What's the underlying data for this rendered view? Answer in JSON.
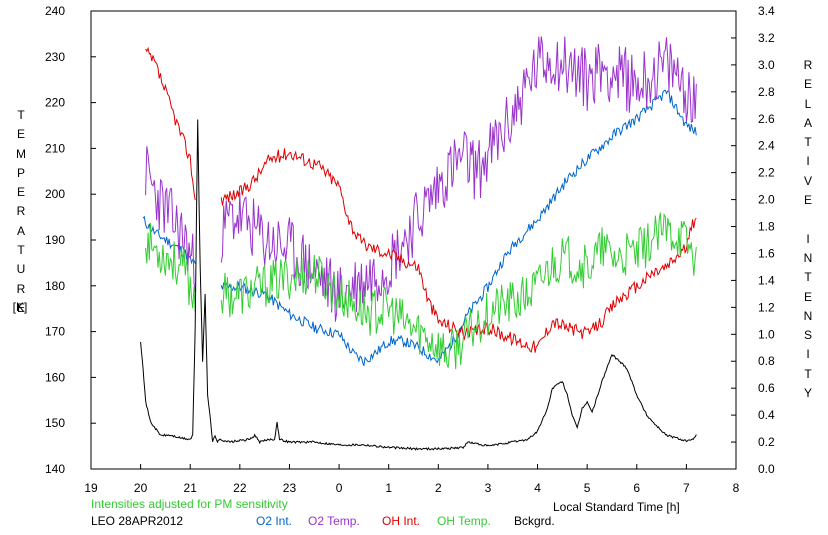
{
  "chart_data": {
    "type": "line",
    "title": "",
    "xlabel": "Local Standard Time [h]",
    "ylabel_left": "TEMPERATURE",
    "ylabel_left_unit": "[K]",
    "ylabel_right": "RELATIVE INTENSITY",
    "x_ticks": [
      "19",
      "20",
      "21",
      "22",
      "23",
      "0",
      "1",
      "2",
      "3",
      "4",
      "5",
      "6",
      "7",
      "8"
    ],
    "xlim": [
      19,
      32
    ],
    "ylim_left": [
      140,
      240
    ],
    "ylim_right": [
      0.0,
      3.4
    ],
    "y_ticks_left": [
      "140",
      "150",
      "160",
      "170",
      "180",
      "190",
      "200",
      "210",
      "220",
      "230",
      "240"
    ],
    "y_ticks_right": [
      "0.0",
      "0.2",
      "0.4",
      "0.6",
      "0.8",
      "1.0",
      "1.2",
      "1.4",
      "1.6",
      "1.8",
      "2.0",
      "2.2",
      "2.4",
      "2.6",
      "2.8",
      "3.0",
      "3.2",
      "3.4"
    ],
    "grid": false,
    "note": "Intensities adjusted for PM sensitivity",
    "station": "LEO 28APR2012",
    "series": [
      {
        "name": "O2 Int.",
        "axis": "right",
        "color": "#0066cc",
        "x": [
          20.05,
          20.3,
          20.6,
          20.9,
          21.0,
          21.6,
          22.0,
          22.5,
          23.0,
          23.5,
          24.0,
          24.3,
          24.5,
          24.8,
          25.0,
          25.3,
          25.6,
          25.8,
          26.0,
          26.3,
          26.6,
          27.0,
          27.3,
          27.6,
          28.0,
          28.3,
          28.6,
          29.0,
          29.3,
          29.6,
          30.0,
          30.3,
          30.6,
          31.0,
          31.2
        ],
        "values": [
          1.85,
          1.75,
          1.68,
          1.6,
          1.55,
          1.35,
          1.35,
          1.3,
          1.15,
          1.05,
          1.0,
          0.85,
          0.8,
          0.88,
          0.95,
          0.95,
          0.9,
          0.85,
          0.8,
          0.95,
          1.15,
          1.35,
          1.55,
          1.7,
          1.85,
          2.0,
          2.15,
          2.3,
          2.4,
          2.5,
          2.6,
          2.7,
          2.8,
          2.55,
          2.5
        ]
      },
      {
        "name": "O2 Temp.",
        "axis": "left",
        "color": "#9933cc",
        "x": [
          20.1,
          20.3,
          20.6,
          20.9,
          21.05,
          21.6,
          21.8,
          22.0,
          22.5,
          23.0,
          23.3,
          23.6,
          24.0,
          24.3,
          24.6,
          25.0,
          25.3,
          25.6,
          25.9,
          26.2,
          26.5,
          26.8,
          27.1,
          27.4,
          27.7,
          28.0,
          28.3,
          28.6,
          29.0,
          29.3,
          29.6,
          30.0,
          30.3,
          30.6,
          30.9,
          31.2
        ],
        "values": [
          205,
          200,
          195,
          190,
          185,
          190,
          195,
          195,
          190,
          188,
          185,
          182,
          178,
          180,
          182,
          185,
          190,
          195,
          200,
          205,
          208,
          205,
          210,
          215,
          222,
          228,
          230,
          228,
          225,
          228,
          226,
          224,
          226,
          228,
          225,
          218
        ]
      },
      {
        "name": "OH Int.",
        "axis": "right",
        "color": "#dd0000",
        "x": [
          20.1,
          20.3,
          20.5,
          20.7,
          20.8,
          21.0,
          21.1,
          21.6,
          22.0,
          22.3,
          22.6,
          23.0,
          23.3,
          23.6,
          24.0,
          24.2,
          24.4,
          24.6,
          25.0,
          25.3,
          25.6,
          25.8,
          26.0,
          26.3,
          26.6,
          27.0,
          27.3,
          27.6,
          28.0,
          28.3,
          28.6,
          29.0,
          29.3,
          29.6,
          30.0,
          30.3,
          30.6,
          31.0,
          31.2
        ],
        "values": [
          3.1,
          3.0,
          2.8,
          2.6,
          2.5,
          2.3,
          2.0,
          2.0,
          2.05,
          2.15,
          2.3,
          2.35,
          2.3,
          2.25,
          2.1,
          1.85,
          1.7,
          1.65,
          1.6,
          1.55,
          1.5,
          1.25,
          1.1,
          1.05,
          1.0,
          1.05,
          1.0,
          0.95,
          0.9,
          1.1,
          1.05,
          1.0,
          1.1,
          1.25,
          1.35,
          1.45,
          1.5,
          1.65,
          1.9
        ]
      },
      {
        "name": "OH Temp.",
        "axis": "left",
        "color": "#33cc33",
        "x": [
          20.1,
          20.3,
          20.6,
          20.9,
          21.05,
          21.6,
          22.0,
          22.5,
          23.0,
          23.5,
          24.0,
          24.3,
          24.6,
          25.0,
          25.3,
          25.6,
          25.9,
          26.2,
          26.5,
          26.8,
          27.1,
          27.4,
          27.7,
          28.0,
          28.3,
          28.6,
          29.0,
          29.3,
          29.6,
          30.0,
          30.3,
          30.6,
          30.9,
          31.2
        ],
        "values": [
          190,
          188,
          186,
          183,
          178,
          178,
          178,
          180,
          182,
          183,
          178,
          176,
          174,
          175,
          172,
          170,
          168,
          165,
          168,
          172,
          175,
          176,
          177,
          180,
          185,
          186,
          184,
          188,
          186,
          187,
          190,
          192,
          191,
          186
        ]
      },
      {
        "name": "Bckgrd.",
        "axis": "right",
        "color": "#000000",
        "x": [
          20.0,
          20.05,
          20.1,
          20.2,
          20.4,
          20.6,
          20.8,
          21.0,
          21.05,
          21.1,
          21.15,
          21.2,
          21.25,
          21.3,
          21.35,
          21.4,
          21.45,
          21.5,
          21.55,
          21.6,
          21.8,
          22.0,
          22.2,
          22.3,
          22.4,
          22.6,
          22.7,
          22.75,
          22.8,
          23.0,
          23.5,
          24.0,
          24.5,
          25.0,
          25.5,
          26.0,
          26.5,
          26.6,
          27.0,
          27.5,
          27.8,
          28.0,
          28.2,
          28.3,
          28.5,
          28.6,
          28.7,
          28.8,
          28.9,
          29.0,
          29.1,
          29.3,
          29.5,
          29.8,
          30.0,
          30.2,
          30.4,
          30.6,
          30.8,
          31.0,
          31.1,
          31.2
        ],
        "values": [
          0.95,
          0.75,
          0.5,
          0.35,
          0.25,
          0.25,
          0.23,
          0.22,
          0.25,
          1.05,
          2.6,
          1.5,
          0.8,
          1.3,
          0.55,
          0.4,
          0.2,
          0.25,
          0.2,
          0.22,
          0.2,
          0.21,
          0.22,
          0.25,
          0.2,
          0.22,
          0.22,
          0.35,
          0.22,
          0.2,
          0.2,
          0.18,
          0.18,
          0.16,
          0.15,
          0.15,
          0.16,
          0.2,
          0.17,
          0.2,
          0.22,
          0.28,
          0.45,
          0.6,
          0.65,
          0.55,
          0.4,
          0.3,
          0.45,
          0.5,
          0.42,
          0.65,
          0.85,
          0.75,
          0.55,
          0.4,
          0.32,
          0.25,
          0.23,
          0.21,
          0.21,
          0.25
        ]
      }
    ]
  },
  "legend": {
    "o2_int": "O2 Int.",
    "o2_temp": "O2 Temp.",
    "oh_int": "OH Int.",
    "oh_temp": "OH Temp.",
    "bckgrd": "Bckgrd."
  },
  "colors": {
    "o2_int": "#0066cc",
    "o2_temp": "#9933cc",
    "oh_int": "#dd0000",
    "oh_temp": "#33cc33",
    "bckgrd": "#000000",
    "note": "#33cc33"
  }
}
